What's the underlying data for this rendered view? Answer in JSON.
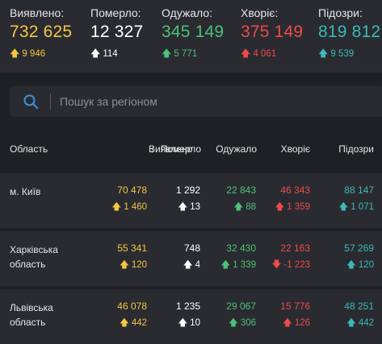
{
  "summary": {
    "detected": {
      "label": "Виявлено:",
      "value": "732 625",
      "delta": "9 946",
      "color": "#f5c543"
    },
    "died": {
      "label": "Померло:",
      "value": "12 327",
      "delta": "114",
      "color": "#ffffff"
    },
    "recovered": {
      "label": "Одужало:",
      "value": "345 149",
      "delta": "5 771",
      "color": "#4cc179"
    },
    "sick": {
      "label": "Хворіє:",
      "value": "375 149",
      "delta": "4 061",
      "color": "#ee4a4d"
    },
    "suspected": {
      "label": "Підозри:",
      "value": "819 812",
      "delta": "9 539",
      "color": "#3ab9b9"
    }
  },
  "search": {
    "placeholder": "Пошук за регіоном",
    "icon": "search-icon"
  },
  "table": {
    "headers": {
      "region": "Область",
      "detected": "Виявлено",
      "sort_arrow": "↓",
      "died": "Померло",
      "recovered": "Одужало",
      "sick": "Хворіє",
      "suspected": "Підозри"
    },
    "rows": [
      {
        "region": "м. Київ",
        "detected": "70 478",
        "detected_delta": "1 460",
        "died": "1 292",
        "died_delta": "13",
        "recovered": "22 843",
        "recovered_delta": "88",
        "sick": "46 343",
        "sick_delta": "1 359",
        "sick_dir": "up",
        "suspected": "88 147",
        "suspected_delta": "1 071"
      },
      {
        "region": "Харківська область",
        "detected": "55 341",
        "detected_delta": "120",
        "died": "748",
        "died_delta": "4",
        "recovered": "32 430",
        "recovered_delta": "1 339",
        "sick": "22 163",
        "sick_delta": "-1 223",
        "sick_dir": "down",
        "suspected": "57 269",
        "suspected_delta": "120"
      },
      {
        "region": "Львівська область",
        "detected": "46 078",
        "detected_delta": "442",
        "died": "1 235",
        "died_delta": "10",
        "recovered": "29 067",
        "recovered_delta": "306",
        "sick": "15 776",
        "sick_delta": "126",
        "sick_dir": "up",
        "suspected": "48 251",
        "suspected_delta": "442"
      }
    ]
  }
}
